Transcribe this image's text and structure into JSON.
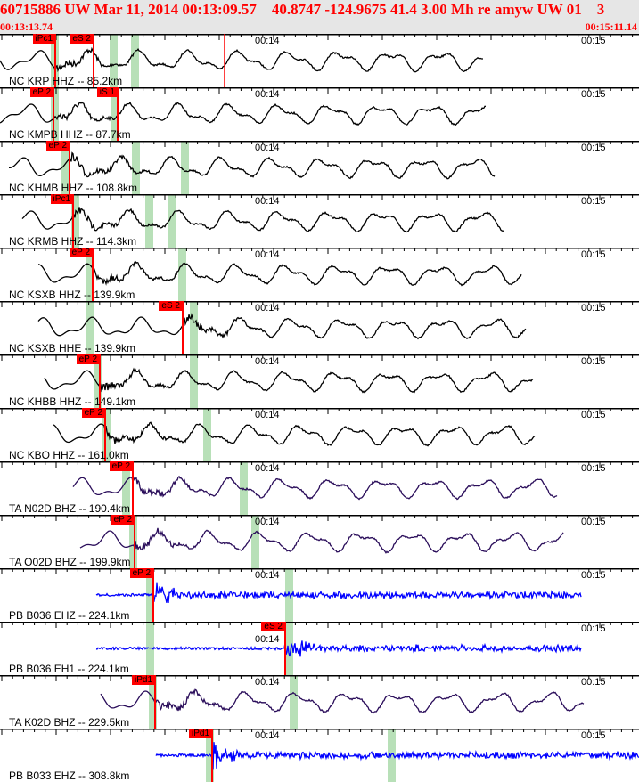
{
  "header": {
    "title": "60715886 UW Mar 11, 2014 00:13:09.57    40.8747 -124.9675 41.4 3.00 Mh re amyw UW 01    3",
    "start_time": "00:13:13.74",
    "end_time": "00:15:11.14"
  },
  "time_marks": [
    "00:14",
    "00:15"
  ],
  "colors": {
    "pick": "#ff0000",
    "window": "#b8e0b8",
    "nc": "#000000",
    "ta": "#2a0d5a",
    "pb": "#0000ff"
  },
  "channels": [
    {
      "label": "NC KRP HHZ -- 85.2km",
      "picks": [
        "iPc1",
        "eS 2"
      ],
      "net": "nc"
    },
    {
      "label": "NC KMPB HHZ -- 87.7km",
      "picks": [
        "eP 2",
        "iS 1"
      ],
      "net": "nc"
    },
    {
      "label": "NC KHMB HHZ -- 108.8km",
      "picks": [
        "eP 2"
      ],
      "net": "nc"
    },
    {
      "label": "NC KRMB HHZ -- 114.3km",
      "picks": [
        "iPc1"
      ],
      "net": "nc"
    },
    {
      "label": "NC KSXB HHZ -- 139.9km",
      "picks": [
        "eP 2"
      ],
      "net": "nc"
    },
    {
      "label": "NC KSXB HHE -- 139.9km",
      "picks": [
        "eS 2"
      ],
      "net": "nc"
    },
    {
      "label": "NC KHBB HHZ -- 149.1km",
      "picks": [
        "eP 2"
      ],
      "net": "nc"
    },
    {
      "label": "NC KBO HHZ -- 161.0km",
      "picks": [
        "eP 2"
      ],
      "net": "nc"
    },
    {
      "label": "TA N02D BHZ -- 190.4km",
      "picks": [
        "eP 2"
      ],
      "net": "ta"
    },
    {
      "label": "TA O02D BHZ -- 199.9km",
      "picks": [
        "eP 2"
      ],
      "net": "ta"
    },
    {
      "label": "PB B036 EHZ -- 224.1km",
      "picks": [
        "eP 2"
      ],
      "net": "pb"
    },
    {
      "label": "PB B036 EH1 -- 224.1km",
      "picks": [
        "eS 2"
      ],
      "net": "pb"
    },
    {
      "label": "TA K02D BHZ -- 229.5km",
      "picks": [
        "iPd1"
      ],
      "net": "ta"
    },
    {
      "label": "PB B033 EHZ -- 308.8km",
      "picks": [
        "iPd1"
      ],
      "net": "pb"
    }
  ]
}
